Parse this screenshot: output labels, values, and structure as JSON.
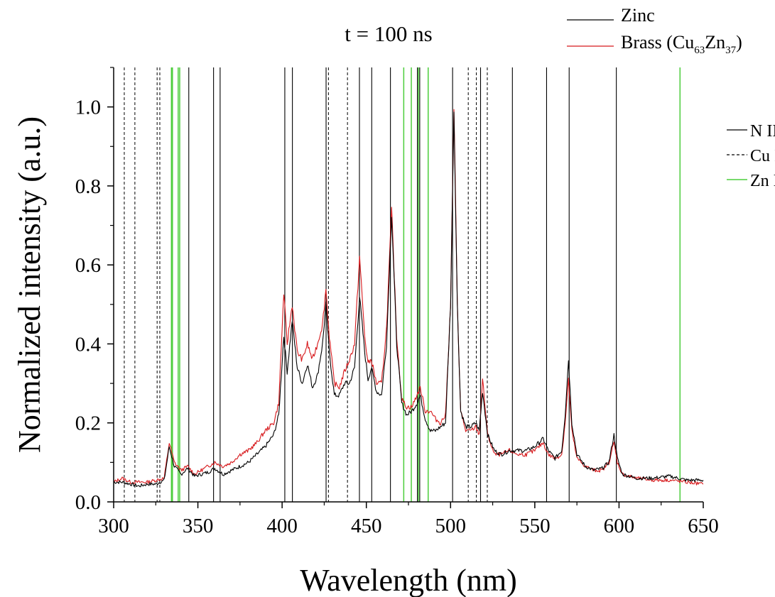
{
  "chart_data": {
    "type": "line",
    "title": "t = 100 ns",
    "xlabel": "Wavelength (nm)",
    "ylabel": "Normalized intensity (a.u.)",
    "xlim": [
      300,
      650
    ],
    "ylim": [
      0,
      1.1
    ],
    "xticks": [
      300,
      350,
      400,
      450,
      500,
      550,
      600,
      650
    ],
    "xtick_labels": [
      "300",
      "350",
      "400",
      "450",
      "500",
      "550",
      "600",
      "650"
    ],
    "yticks": [
      0,
      0.2,
      0.4,
      0.6,
      0.8,
      1.0
    ],
    "ytick_labels": [
      "0.0",
      "0.2",
      "0.4",
      "0.6",
      "0.8",
      "1.0"
    ],
    "legend_series": {
      "placement": "top-right",
      "zinc_label": "Zinc",
      "brass_prefix": "Brass (Cu",
      "brass_sub1": "63",
      "brass_mid": "Zn",
      "brass_sub2": "37",
      "brass_suffix": ")"
    },
    "legend_lines": {
      "placement": "right",
      "n2_label": "N II",
      "cu1_label": "Cu I",
      "zn1_label": "Zn I"
    },
    "colors": {
      "zinc": "#000000",
      "brass": "#d7191c",
      "n2": "#000000",
      "cu1": "#000000",
      "zn1": "#4ccd3c"
    },
    "series": [
      {
        "name": "Zinc",
        "color": "#000000",
        "points": [
          [
            300,
            0.05
          ],
          [
            305,
            0.05
          ],
          [
            310,
            0.045
          ],
          [
            315,
            0.04
          ],
          [
            320,
            0.045
          ],
          [
            325,
            0.045
          ],
          [
            330,
            0.055
          ],
          [
            333,
            0.14
          ],
          [
            336,
            0.09
          ],
          [
            340,
            0.07
          ],
          [
            344,
            0.085
          ],
          [
            348,
            0.065
          ],
          [
            352,
            0.07
          ],
          [
            356,
            0.075
          ],
          [
            360,
            0.085
          ],
          [
            365,
            0.07
          ],
          [
            370,
            0.08
          ],
          [
            375,
            0.09
          ],
          [
            380,
            0.1
          ],
          [
            385,
            0.12
          ],
          [
            390,
            0.14
          ],
          [
            395,
            0.17
          ],
          [
            398,
            0.22
          ],
          [
            401,
            0.42
          ],
          [
            403,
            0.33
          ],
          [
            406,
            0.46
          ],
          [
            409,
            0.34
          ],
          [
            412,
            0.3
          ],
          [
            415,
            0.35
          ],
          [
            418,
            0.29
          ],
          [
            421,
            0.32
          ],
          [
            424,
            0.4
          ],
          [
            426,
            0.5
          ],
          [
            428,
            0.38
          ],
          [
            431,
            0.27
          ],
          [
            434,
            0.27
          ],
          [
            437,
            0.3
          ],
          [
            440,
            0.3
          ],
          [
            443,
            0.34
          ],
          [
            446,
            0.52
          ],
          [
            449,
            0.38
          ],
          [
            451,
            0.31
          ],
          [
            453,
            0.34
          ],
          [
            456,
            0.28
          ],
          [
            459,
            0.27
          ],
          [
            462,
            0.4
          ],
          [
            465,
            0.73
          ],
          [
            468,
            0.4
          ],
          [
            471,
            0.25
          ],
          [
            474,
            0.22
          ],
          [
            477,
            0.23
          ],
          [
            480,
            0.25
          ],
          [
            482,
            0.27
          ],
          [
            485,
            0.21
          ],
          [
            488,
            0.18
          ],
          [
            491,
            0.18
          ],
          [
            494,
            0.19
          ],
          [
            497,
            0.2
          ],
          [
            500,
            0.5
          ],
          [
            502,
            0.99
          ],
          [
            504,
            0.5
          ],
          [
            506,
            0.23
          ],
          [
            509,
            0.19
          ],
          [
            512,
            0.19
          ],
          [
            515,
            0.2
          ],
          [
            517,
            0.18
          ],
          [
            519,
            0.28
          ],
          [
            522,
            0.17
          ],
          [
            526,
            0.13
          ],
          [
            530,
            0.12
          ],
          [
            535,
            0.13
          ],
          [
            540,
            0.13
          ],
          [
            545,
            0.13
          ],
          [
            550,
            0.14
          ],
          [
            555,
            0.16
          ],
          [
            558,
            0.13
          ],
          [
            562,
            0.11
          ],
          [
            566,
            0.13
          ],
          [
            568,
            0.22
          ],
          [
            570,
            0.36
          ],
          [
            572,
            0.2
          ],
          [
            575,
            0.12
          ],
          [
            580,
            0.09
          ],
          [
            585,
            0.08
          ],
          [
            590,
            0.085
          ],
          [
            594,
            0.1
          ],
          [
            597,
            0.17
          ],
          [
            599,
            0.11
          ],
          [
            602,
            0.07
          ],
          [
            610,
            0.06
          ],
          [
            620,
            0.06
          ],
          [
            630,
            0.065
          ],
          [
            640,
            0.055
          ],
          [
            650,
            0.055
          ]
        ]
      },
      {
        "name": "Brass (Cu63Zn37)",
        "color": "#d7191c",
        "points": [
          [
            300,
            0.05
          ],
          [
            305,
            0.06
          ],
          [
            310,
            0.05
          ],
          [
            315,
            0.05
          ],
          [
            320,
            0.05
          ],
          [
            325,
            0.055
          ],
          [
            330,
            0.06
          ],
          [
            333,
            0.15
          ],
          [
            336,
            0.1
          ],
          [
            340,
            0.08
          ],
          [
            344,
            0.09
          ],
          [
            348,
            0.07
          ],
          [
            352,
            0.08
          ],
          [
            356,
            0.09
          ],
          [
            360,
            0.1
          ],
          [
            365,
            0.09
          ],
          [
            370,
            0.1
          ],
          [
            375,
            0.12
          ],
          [
            380,
            0.13
          ],
          [
            385,
            0.15
          ],
          [
            390,
            0.18
          ],
          [
            395,
            0.2
          ],
          [
            398,
            0.25
          ],
          [
            401,
            0.53
          ],
          [
            403,
            0.4
          ],
          [
            406,
            0.5
          ],
          [
            409,
            0.38
          ],
          [
            412,
            0.36
          ],
          [
            415,
            0.4
          ],
          [
            418,
            0.36
          ],
          [
            421,
            0.4
          ],
          [
            424,
            0.45
          ],
          [
            426,
            0.54
          ],
          [
            428,
            0.42
          ],
          [
            431,
            0.3
          ],
          [
            434,
            0.29
          ],
          [
            437,
            0.33
          ],
          [
            440,
            0.36
          ],
          [
            443,
            0.4
          ],
          [
            446,
            0.62
          ],
          [
            449,
            0.42
          ],
          [
            451,
            0.35
          ],
          [
            453,
            0.36
          ],
          [
            456,
            0.3
          ],
          [
            459,
            0.3
          ],
          [
            462,
            0.44
          ],
          [
            465,
            0.74
          ],
          [
            468,
            0.42
          ],
          [
            471,
            0.26
          ],
          [
            474,
            0.24
          ],
          [
            477,
            0.24
          ],
          [
            480,
            0.27
          ],
          [
            482,
            0.29
          ],
          [
            485,
            0.23
          ],
          [
            488,
            0.23
          ],
          [
            491,
            0.21
          ],
          [
            494,
            0.2
          ],
          [
            497,
            0.22
          ],
          [
            500,
            0.5
          ],
          [
            502,
            1.0
          ],
          [
            504,
            0.5
          ],
          [
            506,
            0.23
          ],
          [
            509,
            0.18
          ],
          [
            512,
            0.18
          ],
          [
            515,
            0.19
          ],
          [
            517,
            0.17
          ],
          [
            519,
            0.31
          ],
          [
            522,
            0.17
          ],
          [
            526,
            0.12
          ],
          [
            530,
            0.12
          ],
          [
            535,
            0.13
          ],
          [
            540,
            0.12
          ],
          [
            545,
            0.12
          ],
          [
            550,
            0.13
          ],
          [
            555,
            0.15
          ],
          [
            558,
            0.12
          ],
          [
            562,
            0.11
          ],
          [
            566,
            0.12
          ],
          [
            568,
            0.2
          ],
          [
            570,
            0.31
          ],
          [
            572,
            0.18
          ],
          [
            575,
            0.11
          ],
          [
            580,
            0.09
          ],
          [
            585,
            0.08
          ],
          [
            590,
            0.08
          ],
          [
            594,
            0.1
          ],
          [
            597,
            0.15
          ],
          [
            599,
            0.1
          ],
          [
            602,
            0.07
          ],
          [
            610,
            0.06
          ],
          [
            620,
            0.055
          ],
          [
            630,
            0.055
          ],
          [
            640,
            0.05
          ],
          [
            650,
            0.045
          ]
        ]
      }
    ],
    "reference_lines": {
      "N II": [
        344.6,
        359.3,
        363.2,
        401.6,
        406.1,
        426.1,
        445.9,
        453.2,
        464.3,
        480.3,
        481.7,
        501.2,
        517.8,
        536.7,
        557.0,
        570.4,
        598.4
      ],
      "Cu I": [
        306.3,
        312.6,
        325.8,
        327.4,
        427.5,
        438.8,
        510.5,
        515.3,
        521.8
      ],
      "Zn I": [
        334.3,
        334.9,
        338.3,
        339.2,
        472.2,
        476.7,
        481.0,
        486.7,
        636.2
      ]
    }
  }
}
